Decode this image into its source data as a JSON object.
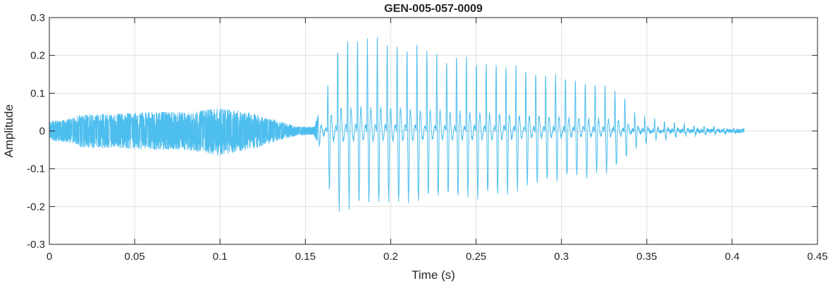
{
  "chart_data": {
    "type": "line",
    "title": "GEN-005-057-0009",
    "xlabel": "Time (s)",
    "ylabel": "Amplitude",
    "xlim": [
      0,
      0.45
    ],
    "ylim": [
      -0.3,
      0.3
    ],
    "grid": true,
    "xticks": [
      0,
      0.05,
      0.1,
      0.15,
      0.2,
      0.25,
      0.3,
      0.35,
      0.4,
      0.45
    ],
    "xtick_labels": [
      "0",
      "0.05",
      "0.1",
      "0.15",
      "0.2",
      "0.25",
      "0.3",
      "0.35",
      "0.4",
      "0.45"
    ],
    "yticks": [
      0.3,
      0.2,
      0.1,
      0,
      -0.1,
      -0.2,
      -0.3
    ],
    "ytick_labels": [
      "0.3",
      "0.2",
      "0.1",
      "0",
      "-0.1",
      "-0.2",
      "-0.3"
    ],
    "series": [
      {
        "color": "#4DBEEE",
        "envelope": {
          "t": [
            0,
            0.01,
            0.02,
            0.04,
            0.06,
            0.08,
            0.1,
            0.115,
            0.125,
            0.135,
            0.145,
            0.155,
            0.158,
            0.162,
            0.166,
            0.17,
            0.18,
            0.2,
            0.22,
            0.24,
            0.26,
            0.28,
            0.3,
            0.32,
            0.335,
            0.34,
            0.345,
            0.355,
            0.37,
            0.385,
            0.4,
            0.407
          ],
          "upper": [
            0.025,
            0.03,
            0.045,
            0.045,
            0.05,
            0.05,
            0.06,
            0.05,
            0.04,
            0.025,
            0.012,
            0.01,
            0.05,
            0.1,
            0.19,
            0.26,
            0.25,
            0.25,
            0.22,
            0.2,
            0.19,
            0.17,
            0.15,
            0.13,
            0.11,
            0.06,
            0.045,
            0.03,
            0.02,
            0.012,
            0.006,
            0.003
          ],
          "lower": [
            -0.025,
            -0.03,
            -0.045,
            -0.045,
            -0.05,
            -0.05,
            -0.065,
            -0.05,
            -0.04,
            -0.025,
            -0.012,
            -0.01,
            -0.04,
            -0.12,
            -0.2,
            -0.22,
            -0.2,
            -0.2,
            -0.19,
            -0.18,
            -0.18,
            -0.15,
            -0.13,
            -0.12,
            -0.1,
            -0.055,
            -0.04,
            -0.025,
            -0.015,
            -0.01,
            -0.005,
            -0.002
          ]
        },
        "voiced_onset_s": 0.157,
        "pitch_period_s": 0.0058,
        "duration_s": 0.407
      }
    ]
  }
}
